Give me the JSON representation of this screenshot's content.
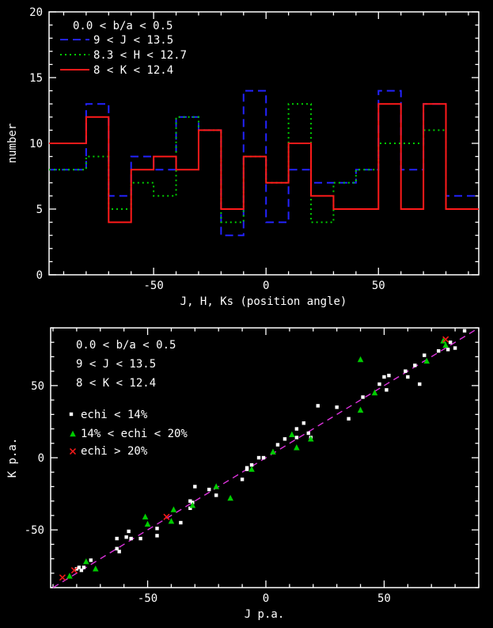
{
  "figure": {
    "background": "#000000",
    "frame_color": "#ffffff",
    "accent_colors": {
      "j_blue": "#2323ff",
      "h_green": "#00cc00",
      "k_red": "#ff1a1a",
      "reference_magenta": "#dd33dd",
      "marker_white": "#ffffff"
    }
  },
  "chart_data": [
    {
      "type": "bar",
      "subtype": "step-histogram",
      "title": "",
      "xlabel": "J, H, Ks (position angle)",
      "ylabel": "number",
      "annotation": "0.0 < b/a < 0.5",
      "xlim": [
        -96.5,
        94.6
      ],
      "ylim": [
        0,
        20
      ],
      "x_major_ticks": [
        -50,
        0,
        50
      ],
      "x_minor_step": 10,
      "y_major_ticks": [
        0,
        5,
        10,
        15,
        20
      ],
      "y_minor_step": 1,
      "grid": "off",
      "legend_position": "top-left-inside",
      "bin_edges": [
        -90,
        -80,
        -70,
        -60,
        -50,
        -40,
        -30,
        -20,
        -10,
        0,
        10,
        20,
        30,
        40,
        50,
        60,
        70,
        80,
        90
      ],
      "series": [
        {
          "name": "9 < J < 13.5",
          "color": "#2323ff",
          "style": "dashed",
          "values": [
            8,
            13,
            6,
            9,
            8,
            12,
            11,
            3,
            14,
            4,
            8,
            7,
            7,
            8,
            14,
            8,
            13,
            6
          ]
        },
        {
          "name": "8.3 < H < 12.7",
          "color": "#00cc00",
          "style": "dotted",
          "values": [
            8,
            9,
            5,
            7,
            6,
            12,
            11,
            4,
            9,
            7,
            13,
            4,
            7,
            8,
            10,
            10,
            11,
            5
          ]
        },
        {
          "name": "8 < K < 12.4",
          "color": "#ff1a1a",
          "style": "solid",
          "values": [
            10,
            12,
            4,
            8,
            9,
            8,
            11,
            5,
            9,
            7,
            10,
            6,
            5,
            5,
            13,
            5,
            13,
            5
          ]
        }
      ]
    },
    {
      "type": "scatter",
      "title": "",
      "xlabel": "J p.a.",
      "ylabel": "K p.a.",
      "annotations": [
        "0.0 < b/a < 0.5",
        "9 < J < 13.5",
        "8 < K < 12.4"
      ],
      "xlim": [
        -91,
        90
      ],
      "ylim": [
        -90,
        90
      ],
      "x_major_ticks": [
        -50,
        0,
        50
      ],
      "x_minor_step": 10,
      "y_major_ticks": [
        -50,
        0,
        50
      ],
      "y_minor_step": 10,
      "grid": "off",
      "legend_position": "upper-left-inside",
      "reference_line": {
        "equation": "y = x",
        "x_from": -90,
        "x_to": 90,
        "color": "#dd33dd",
        "style": "dashed"
      },
      "series": [
        {
          "name": "echi < 14%",
          "marker": "square",
          "color": "#ffffff",
          "points": [
            [
              -80,
              -77
            ],
            [
              -79,
              -76
            ],
            [
              -78,
              -78
            ],
            [
              -77,
              -76
            ],
            [
              -74,
              -71
            ],
            [
              -63,
              -63
            ],
            [
              -62,
              -65
            ],
            [
              -63,
              -56
            ],
            [
              -59,
              -55
            ],
            [
              -58,
              -51
            ],
            [
              -57,
              -56
            ],
            [
              -53,
              -56
            ],
            [
              -46,
              -49
            ],
            [
              -46,
              -54
            ],
            [
              -36,
              -45
            ],
            [
              -32,
              -35
            ],
            [
              -32,
              -30
            ],
            [
              -31,
              -31
            ],
            [
              -30,
              -20
            ],
            [
              -24,
              -22
            ],
            [
              -21,
              -26
            ],
            [
              -10,
              -15
            ],
            [
              -8,
              -8
            ],
            [
              -8,
              -7
            ],
            [
              -6,
              -5
            ],
            [
              -3,
              0
            ],
            [
              -1,
              0
            ],
            [
              5,
              9
            ],
            [
              8,
              13
            ],
            [
              13,
              14
            ],
            [
              13,
              20
            ],
            [
              16,
              24
            ],
            [
              18,
              17
            ],
            [
              19,
              14
            ],
            [
              22,
              36
            ],
            [
              30,
              35
            ],
            [
              35,
              27
            ],
            [
              41,
              42
            ],
            [
              48,
              51
            ],
            [
              50,
              56
            ],
            [
              51,
              47
            ],
            [
              52,
              57
            ],
            [
              59,
              60
            ],
            [
              60,
              56
            ],
            [
              63,
              64
            ],
            [
              65,
              51
            ],
            [
              67,
              71
            ],
            [
              73,
              74
            ],
            [
              77,
              75
            ],
            [
              78,
              80
            ],
            [
              80,
              76
            ],
            [
              84,
              88
            ]
          ]
        },
        {
          "name": "14% < echi < 20%",
          "marker": "triangle",
          "color": "#00cc00",
          "points": [
            [
              -83,
              -82
            ],
            [
              -76,
              -72
            ],
            [
              -72,
              -77
            ],
            [
              -51,
              -41
            ],
            [
              -50,
              -46
            ],
            [
              -40,
              -44
            ],
            [
              -39,
              -36
            ],
            [
              -31,
              -33
            ],
            [
              -21,
              -20
            ],
            [
              -15,
              -28
            ],
            [
              -6,
              -8
            ],
            [
              3,
              4
            ],
            [
              11,
              16
            ],
            [
              13,
              7
            ],
            [
              19,
              13
            ],
            [
              40,
              33
            ],
            [
              40,
              68
            ],
            [
              46,
              45
            ],
            [
              68,
              67
            ],
            [
              75,
              81
            ],
            [
              76,
              78
            ]
          ]
        },
        {
          "name": "echi > 20%",
          "marker": "x",
          "color": "#ff1a1a",
          "points": [
            [
              -86,
              -83
            ],
            [
              -81,
              -78
            ],
            [
              -42,
              -41
            ],
            [
              76,
              82
            ]
          ]
        }
      ]
    }
  ]
}
